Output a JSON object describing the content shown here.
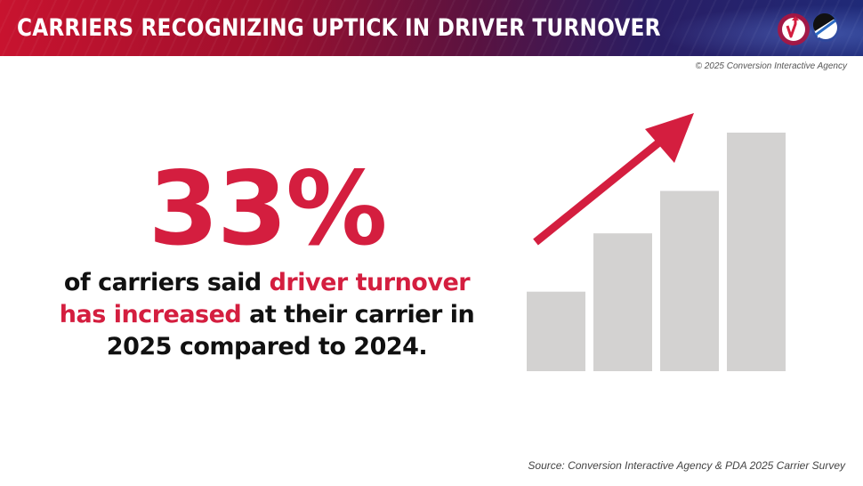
{
  "header": {
    "title": "CARRIERS RECOGNIZING UPTICK IN DRIVER TURNOVER",
    "logos": [
      {
        "icon": "conversion-interactive-logo-icon",
        "color": "#d41e3f"
      },
      {
        "icon": "pda-logo-icon",
        "color": "#1f2a78"
      }
    ]
  },
  "copyright": "© 2025 Conversion Interactive Agency",
  "stat": {
    "value": "33%",
    "text_part1": "of carriers said ",
    "text_highlight": "driver turnover has increased",
    "text_part2": " at their carrier in 2025 compared to 2024."
  },
  "illustration": {
    "type": "bar",
    "bar_values": [
      3,
      5.2,
      6.8,
      9
    ],
    "arrow_icon": "trend-up-arrow-icon",
    "bar_color": "#d3d2d1",
    "arrow_color": "#d41e3f"
  },
  "source": "Source: Conversion Interactive Agency & PDA 2025 Carrier Survey",
  "colors": {
    "accent": "#d41e3f",
    "text": "#111111"
  }
}
